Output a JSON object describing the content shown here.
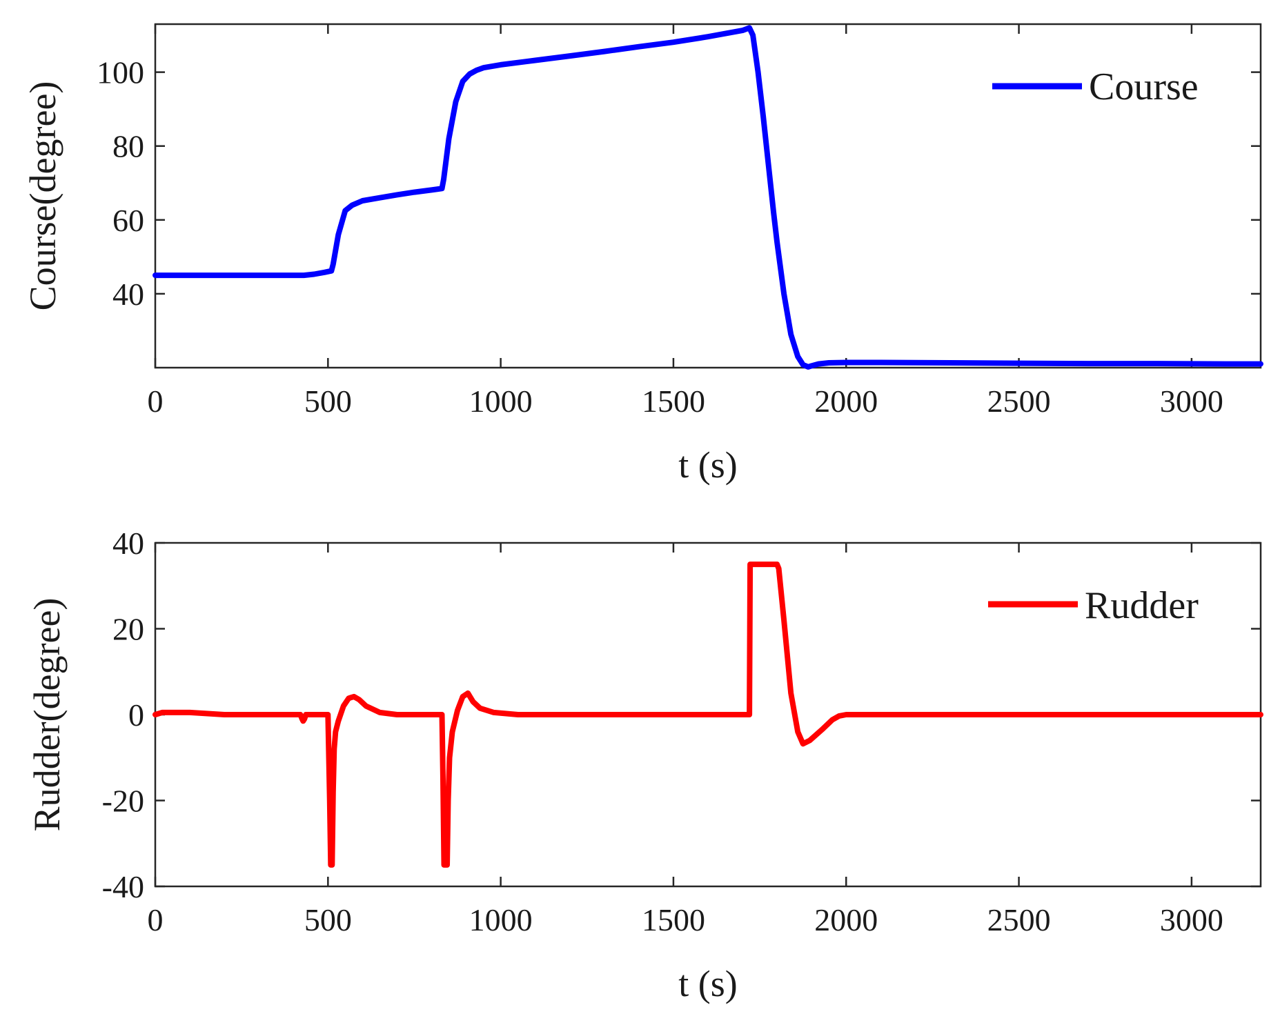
{
  "chart_data": [
    {
      "type": "line",
      "xlabel": "t (s)",
      "ylabel": "Course(degree)",
      "xlim": [
        0,
        3200
      ],
      "ylim": [
        20,
        113
      ],
      "xticks": [
        0,
        500,
        1000,
        1500,
        2000,
        2500,
        3000
      ],
      "yticks": [
        40,
        60,
        80,
        100
      ],
      "grid": false,
      "legend_position": "top-right",
      "series": [
        {
          "name": "Course",
          "color": "#0000ff",
          "x": [
            0,
            100,
            200,
            300,
            400,
            430,
            460,
            490,
            510,
            515,
            530,
            550,
            570,
            600,
            650,
            700,
            750,
            800,
            830,
            835,
            850,
            870,
            890,
            910,
            930,
            950,
            1000,
            1100,
            1200,
            1300,
            1400,
            1500,
            1600,
            1700,
            1720,
            1730,
            1745,
            1760,
            1775,
            1790,
            1800,
            1820,
            1840,
            1860,
            1875,
            1890,
            1900,
            1920,
            1950,
            2000,
            2100,
            2300,
            2500,
            2700,
            2900,
            3100,
            3200
          ],
          "y": [
            45,
            45,
            45,
            45,
            45,
            45,
            45.3,
            45.8,
            46.2,
            48,
            56,
            62.5,
            64,
            65.2,
            66,
            66.8,
            67.5,
            68.1,
            68.5,
            71,
            82,
            92,
            97.5,
            99.5,
            100.5,
            101.2,
            102,
            103.2,
            104.4,
            105.6,
            106.9,
            108.1,
            109.6,
            111.3,
            112,
            110,
            100,
            88,
            75,
            62,
            54,
            40,
            29,
            23,
            20.8,
            20.2,
            20.5,
            21,
            21.3,
            21.4,
            21.4,
            21.3,
            21.2,
            21.1,
            21.1,
            21,
            21
          ]
        }
      ]
    },
    {
      "type": "line",
      "xlabel": "t (s)",
      "ylabel": "Rudder(degree)",
      "xlim": [
        0,
        3200
      ],
      "ylim": [
        -40,
        40
      ],
      "xticks": [
        0,
        500,
        1000,
        1500,
        2000,
        2500,
        3000
      ],
      "yticks": [
        -40,
        -20,
        0,
        20,
        40
      ],
      "grid": false,
      "legend_position": "top-right",
      "series": [
        {
          "name": "Rudder",
          "color": "#ff0000",
          "x": [
            0,
            20,
            100,
            200,
            400,
            420,
            425,
            428,
            432,
            436,
            440,
            500,
            505,
            508,
            512,
            515,
            518,
            522,
            530,
            545,
            560,
            575,
            590,
            610,
            650,
            700,
            800,
            830,
            833,
            836,
            840,
            845,
            848,
            852,
            860,
            875,
            890,
            905,
            920,
            940,
            980,
            1050,
            1200,
            1400,
            1600,
            1720,
            1722,
            1730,
            1800,
            1805,
            1820,
            1840,
            1860,
            1875,
            1895,
            1930,
            1960,
            1980,
            2000,
            2200,
            2500,
            2800,
            3100,
            3200
          ],
          "y": [
            0,
            0.5,
            0.5,
            0,
            0,
            0,
            -1,
            -1.5,
            -1,
            0,
            0,
            0,
            -20,
            -35,
            -35,
            -18,
            -8,
            -4,
            -1.5,
            2,
            3.8,
            4.2,
            3.5,
            2,
            0.5,
            0,
            0,
            0,
            -15,
            -35,
            -35,
            -35,
            -20,
            -10,
            -4,
            1,
            4.2,
            5,
            3,
            1.5,
            0.5,
            0,
            0,
            0,
            0,
            0,
            35,
            35,
            35,
            34,
            22,
            5,
            -4,
            -6.8,
            -6,
            -3.5,
            -1.2,
            -0.3,
            0,
            0,
            0,
            0,
            0,
            0
          ]
        }
      ]
    }
  ]
}
